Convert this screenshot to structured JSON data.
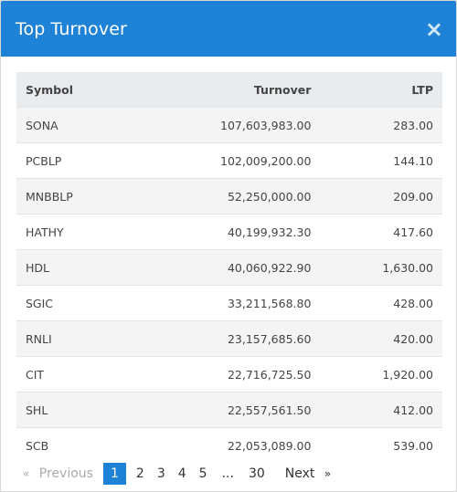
{
  "modal": {
    "title": "Top Turnover",
    "close_label": "×"
  },
  "table": {
    "headers": [
      "Symbol",
      "Turnover",
      "LTP"
    ],
    "rows": [
      [
        "SONA",
        "107,603,983.00",
        "283.00"
      ],
      [
        "PCBLP",
        "102,009,200.00",
        "144.10"
      ],
      [
        "MNBBLP",
        "52,250,000.00",
        "209.00"
      ],
      [
        "HATHY",
        "40,199,932.30",
        "417.60"
      ],
      [
        "HDL",
        "40,060,922.90",
        "1,630.00"
      ],
      [
        "SGIC",
        "33,211,568.80",
        "428.00"
      ],
      [
        "RNLI",
        "23,157,685.60",
        "420.00"
      ],
      [
        "CIT",
        "22,716,725.50",
        "1,920.00"
      ],
      [
        "SHL",
        "22,557,561.50",
        "412.00"
      ],
      [
        "SCB",
        "22,053,089.00",
        "539.00"
      ]
    ]
  },
  "pagination": {
    "prev_arrow": "«",
    "previous": "Previous",
    "pages": [
      "1",
      "2",
      "3",
      "4",
      "5",
      "...",
      "30"
    ],
    "next": "Next",
    "next_arrow": "»"
  }
}
